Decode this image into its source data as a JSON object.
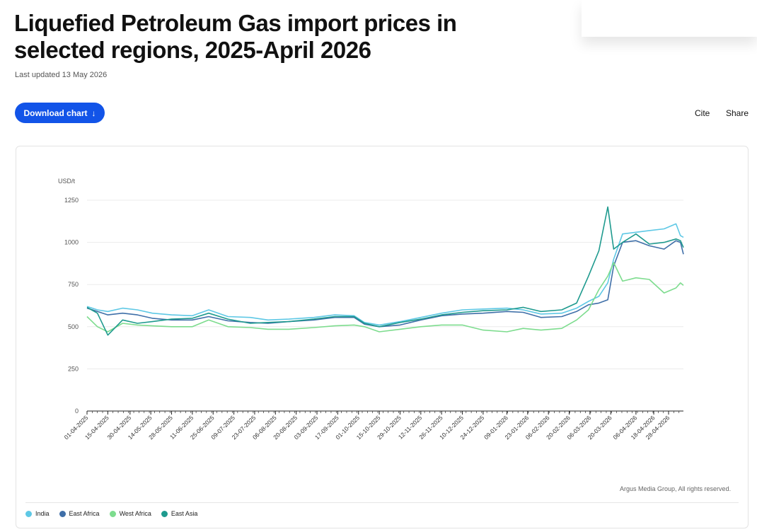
{
  "page": {
    "title": "Liquefied Petroleum Gas import prices in selected regions, 2025-April 2026",
    "last_updated": "Last updated 13 May 2026",
    "download_label": "Download chart",
    "download_icon": "arrow-down-icon",
    "cite_label": "Cite",
    "share_label": "Share",
    "source": "Argus Media Group, All rights reserved."
  },
  "chart_data": {
    "type": "line",
    "ylabel": "USD/t",
    "ylim": [
      0,
      1250
    ],
    "yticks": [
      0,
      250,
      500,
      750,
      1000,
      1250
    ],
    "grid": true,
    "legend_position": "bottom-left",
    "x_start": "2025-04-01",
    "x_end": "2026-05-08",
    "xticks": [
      "01-04-2025",
      "15-04-2025",
      "30-04-2025",
      "14-05-2025",
      "28-05-2025",
      "11-06-2025",
      "25-06-2025",
      "09-07-2025",
      "23-07-2025",
      "06-08-2025",
      "20-08-2025",
      "03-09-2025",
      "17-09-2025",
      "01-10-2025",
      "15-10-2025",
      "29-10-2025",
      "12-11-2025",
      "26-11-2025",
      "10-12-2025",
      "24-12-2025",
      "09-01-2026",
      "23-01-2026",
      "06-02-2026",
      "20-02-2026",
      "06-03-2026",
      "20-03-2026",
      "06-04-2026",
      "18-04-2026",
      "28-04-2026"
    ],
    "series": [
      {
        "name": "India",
        "color": "#5ec8e5",
        "x": [
          "2025-04-01",
          "2025-04-08",
          "2025-04-15",
          "2025-04-25",
          "2025-05-05",
          "2025-05-15",
          "2025-05-28",
          "2025-06-11",
          "2025-06-22",
          "2025-07-05",
          "2025-07-20",
          "2025-08-01",
          "2025-08-15",
          "2025-09-01",
          "2025-09-15",
          "2025-09-28",
          "2025-10-05",
          "2025-10-15",
          "2025-10-29",
          "2025-11-12",
          "2025-11-26",
          "2025-12-10",
          "2025-12-24",
          "2026-01-09",
          "2026-01-20",
          "2026-02-01",
          "2026-02-15",
          "2026-02-25",
          "2026-03-05",
          "2026-03-12",
          "2026-03-18",
          "2026-03-22",
          "2026-03-28",
          "2026-04-06",
          "2026-04-15",
          "2026-04-25",
          "2026-05-03",
          "2026-05-06",
          "2026-05-08"
        ],
        "values": [
          620,
          600,
          590,
          610,
          600,
          580,
          570,
          565,
          600,
          560,
          555,
          540,
          545,
          555,
          570,
          565,
          525,
          510,
          530,
          555,
          580,
          600,
          605,
          610,
          600,
          575,
          580,
          610,
          650,
          680,
          760,
          900,
          1050,
          1060,
          1070,
          1080,
          1110,
          1040,
          1030
        ]
      },
      {
        "name": "East Africa",
        "color": "#3f6fa8",
        "x": [
          "2025-04-01",
          "2025-04-08",
          "2025-04-15",
          "2025-04-25",
          "2025-05-05",
          "2025-05-15",
          "2025-05-28",
          "2025-06-11",
          "2025-06-22",
          "2025-07-05",
          "2025-07-20",
          "2025-08-01",
          "2025-08-15",
          "2025-09-01",
          "2025-09-15",
          "2025-09-28",
          "2025-10-05",
          "2025-10-15",
          "2025-10-29",
          "2025-11-12",
          "2025-11-26",
          "2025-12-10",
          "2025-12-24",
          "2026-01-09",
          "2026-01-20",
          "2026-02-01",
          "2026-02-15",
          "2026-02-25",
          "2026-03-05",
          "2026-03-12",
          "2026-03-18",
          "2026-03-22",
          "2026-03-28",
          "2026-04-06",
          "2026-04-15",
          "2026-04-25",
          "2026-05-03",
          "2026-05-06",
          "2026-05-08"
        ],
        "values": [
          610,
          590,
          570,
          580,
          570,
          550,
          540,
          540,
          560,
          535,
          525,
          520,
          530,
          540,
          555,
          555,
          515,
          500,
          510,
          540,
          565,
          575,
          580,
          590,
          585,
          555,
          560,
          590,
          630,
          640,
          660,
          860,
          1000,
          1010,
          980,
          960,
          1010,
          1000,
          930
        ]
      },
      {
        "name": "West Africa",
        "color": "#7ddc8e",
        "x": [
          "2025-04-01",
          "2025-04-08",
          "2025-04-15",
          "2025-04-25",
          "2025-05-05",
          "2025-05-15",
          "2025-05-28",
          "2025-06-11",
          "2025-06-22",
          "2025-07-05",
          "2025-07-20",
          "2025-08-01",
          "2025-08-15",
          "2025-09-01",
          "2025-09-15",
          "2025-09-28",
          "2025-10-05",
          "2025-10-15",
          "2025-10-29",
          "2025-11-12",
          "2025-11-26",
          "2025-12-10",
          "2025-12-24",
          "2026-01-09",
          "2026-01-20",
          "2026-02-01",
          "2026-02-15",
          "2026-02-25",
          "2026-03-05",
          "2026-03-12",
          "2026-03-18",
          "2026-03-22",
          "2026-03-28",
          "2026-04-06",
          "2026-04-15",
          "2026-04-25",
          "2026-05-03",
          "2026-05-06",
          "2026-05-08"
        ],
        "values": [
          560,
          500,
          470,
          520,
          510,
          505,
          500,
          500,
          540,
          500,
          495,
          485,
          485,
          495,
          505,
          510,
          500,
          470,
          485,
          500,
          510,
          510,
          480,
          470,
          490,
          480,
          490,
          540,
          600,
          720,
          800,
          880,
          770,
          790,
          780,
          700,
          730,
          760,
          745
        ]
      },
      {
        "name": "East Asia",
        "color": "#1e9a8e",
        "x": [
          "2025-04-01",
          "2025-04-08",
          "2025-04-15",
          "2025-04-25",
          "2025-05-05",
          "2025-05-15",
          "2025-05-28",
          "2025-06-11",
          "2025-06-22",
          "2025-07-05",
          "2025-07-20",
          "2025-08-01",
          "2025-08-15",
          "2025-09-01",
          "2025-09-15",
          "2025-09-28",
          "2025-10-05",
          "2025-10-15",
          "2025-10-29",
          "2025-11-12",
          "2025-11-26",
          "2025-12-10",
          "2025-12-24",
          "2026-01-09",
          "2026-01-20",
          "2026-02-01",
          "2026-02-15",
          "2026-02-25",
          "2026-03-05",
          "2026-03-12",
          "2026-03-18",
          "2026-03-22",
          "2026-03-28",
          "2026-04-06",
          "2026-04-15",
          "2026-04-25",
          "2026-05-03",
          "2026-05-06",
          "2026-05-08"
        ],
        "values": [
          615,
          580,
          450,
          540,
          520,
          530,
          545,
          550,
          580,
          545,
          520,
          525,
          530,
          545,
          560,
          560,
          520,
          500,
          525,
          545,
          570,
          585,
          595,
          600,
          615,
          590,
          600,
          640,
          800,
          950,
          1210,
          960,
          1000,
          1050,
          990,
          1000,
          1020,
          1010,
          970
        ]
      }
    ]
  }
}
